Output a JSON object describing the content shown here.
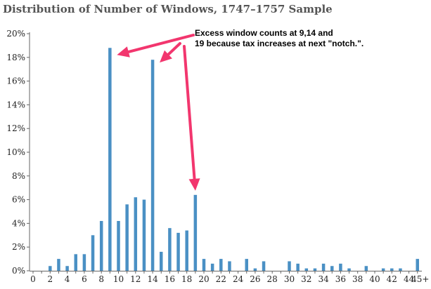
{
  "chart_data": {
    "type": "bar",
    "title": "Distribution of Number of Windows, 1747–1757 Sample",
    "xlabel": "",
    "ylabel": "",
    "x": [
      2,
      3,
      4,
      5,
      6,
      7,
      8,
      9,
      10,
      11,
      12,
      13,
      14,
      15,
      16,
      17,
      18,
      19,
      20,
      21,
      22,
      23,
      24,
      25,
      26,
      27,
      28,
      29,
      30,
      31,
      32,
      33,
      34,
      35,
      36,
      37,
      38,
      39,
      40,
      41,
      42,
      43,
      44,
      45
    ],
    "values": [
      0.4,
      1.0,
      0.4,
      1.4,
      1.4,
      3.0,
      4.2,
      18.8,
      4.2,
      5.6,
      6.2,
      6.0,
      17.8,
      1.6,
      3.6,
      3.2,
      3.4,
      6.4,
      1.0,
      0.6,
      1.0,
      0.8,
      0,
      1.0,
      0.2,
      0.8,
      0,
      0,
      0.8,
      0.6,
      0.2,
      0.2,
      0.6,
      0.4,
      0.6,
      0.2,
      0,
      0.4,
      0,
      0.2,
      0.2,
      0.2,
      0,
      1.0
    ],
    "ylim": [
      0,
      20
    ],
    "y_ticks": [
      "0%",
      "2%",
      "4%",
      "6%",
      "8%",
      "10%",
      "12%",
      "14%",
      "16%",
      "18%",
      "20%"
    ],
    "y_tick_values": [
      0,
      2,
      4,
      6,
      8,
      10,
      12,
      14,
      16,
      18,
      20
    ],
    "x_ticks": [
      "0",
      "2",
      "4",
      "6",
      "8",
      "10",
      "12",
      "14",
      "16",
      "18",
      "20",
      "22",
      "24",
      "26",
      "28",
      "30",
      "32",
      "34",
      "36",
      "38",
      "40",
      "42",
      "44",
      "45+"
    ],
    "x_tick_values": [
      0,
      2,
      4,
      6,
      8,
      10,
      12,
      14,
      16,
      18,
      20,
      22,
      24,
      26,
      28,
      30,
      32,
      34,
      36,
      38,
      40,
      42,
      44,
      45
    ],
    "xlim": [
      0,
      45
    ],
    "bar_color": "#4a90c4",
    "grid": false,
    "annotation": {
      "lines": [
        "Excess window counts at 9,14 and",
        "19 because tax increases at next \"notch.\"."
      ],
      "arrow_color": "#f2366e",
      "targets": [
        9,
        14,
        19
      ]
    }
  }
}
